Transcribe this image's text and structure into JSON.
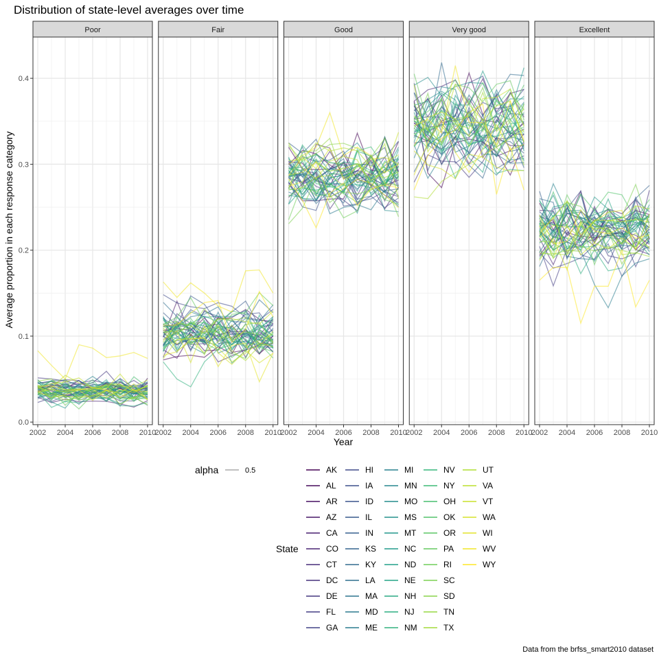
{
  "chart_data": {
    "type": "line",
    "title": "Distribution of state-level averages over time",
    "xlabel": "Year",
    "ylabel": "Average proportion in each response category",
    "caption": "Data from the brfss_smart2010 dataset",
    "facets": [
      "Poor",
      "Fair",
      "Good",
      "Very good",
      "Excellent"
    ],
    "x": [
      2002,
      2003,
      2004,
      2005,
      2006,
      2007,
      2008,
      2009,
      2010
    ],
    "x_ticks": [
      2002,
      2004,
      2006,
      2008,
      2010
    ],
    "xlim": [
      2002,
      2010
    ],
    "y_ticks": [
      0.0,
      0.1,
      0.2,
      0.3,
      0.4
    ],
    "y_tick_labels": [
      "0.0",
      "0.1",
      "0.2",
      "0.3",
      "0.4"
    ],
    "ylim": [
      -0.003,
      0.448
    ],
    "grid": true,
    "line_alpha": 0.5,
    "facet_summary": {
      "Poor": {
        "center": 0.036,
        "spread": 0.008
      },
      "Fair": {
        "center": 0.103,
        "spread": 0.017
      },
      "Good": {
        "center": 0.287,
        "spread": 0.022
      },
      "Very good": {
        "center": 0.348,
        "spread": 0.028
      },
      "Excellent": {
        "center": 0.223,
        "spread": 0.024
      }
    },
    "highlighted_series": [
      {
        "facet": "Poor",
        "state": "WV",
        "values": [
          0.083,
          0.066,
          0.05,
          0.09,
          0.086,
          0.075,
          0.077,
          0.081,
          0.074
        ]
      },
      {
        "facet": "Fair",
        "state": "WV",
        "values": [
          0.163,
          0.145,
          0.162,
          0.15,
          0.135,
          0.128,
          0.176,
          0.177,
          0.15
        ]
      },
      {
        "facet": "Fair",
        "state": "NM",
        "values": [
          0.07,
          0.05,
          0.041,
          0.07,
          0.085,
          0.09,
          0.1,
          0.11,
          0.12
        ]
      },
      {
        "facet": "Good",
        "state": "WV",
        "values": [
          0.3,
          0.31,
          0.32,
          0.36,
          0.31,
          0.32,
          0.31,
          0.29,
          0.3
        ]
      },
      {
        "facet": "Very good",
        "state": "WY",
        "values": [
          0.27,
          0.31,
          0.33,
          0.34,
          0.36,
          0.37,
          0.265,
          0.32,
          0.27
        ]
      },
      {
        "facet": "Very good",
        "state": "UT",
        "values": [
          0.262,
          0.26,
          0.28,
          0.29,
          0.3,
          0.31,
          0.32,
          0.33,
          0.34
        ]
      },
      {
        "facet": "Excellent",
        "state": "WY",
        "values": [
          0.165,
          0.18,
          0.18,
          0.115,
          0.158,
          0.158,
          0.2,
          0.134,
          0.165
        ]
      },
      {
        "facet": "Excellent",
        "state": "ME",
        "values": [
          0.22,
          0.2,
          0.21,
          0.2,
          0.16,
          0.133,
          0.17,
          0.185,
          0.19
        ]
      }
    ],
    "legend": {
      "alpha_title": "alpha",
      "alpha_value": "0.5",
      "state_title": "State",
      "states": [
        "AK",
        "AL",
        "AR",
        "AZ",
        "CA",
        "CO",
        "CT",
        "DC",
        "DE",
        "FL",
        "GA",
        "HI",
        "IA",
        "ID",
        "IL",
        "IN",
        "KS",
        "KY",
        "LA",
        "MA",
        "MD",
        "ME",
        "MI",
        "MN",
        "MO",
        "MS",
        "MT",
        "NC",
        "ND",
        "NE",
        "NH",
        "NJ",
        "NM",
        "NV",
        "NY",
        "OH",
        "OK",
        "OR",
        "PA",
        "RI",
        "SC",
        "SD",
        "TN",
        "TX",
        "UT",
        "VA",
        "VT",
        "WA",
        "WI",
        "WV",
        "WY"
      ],
      "placement": "bottom"
    },
    "palette": "viridis",
    "colors": {
      "panel_border": "#333333",
      "grid": "#ebebeb",
      "strip_fill": "#d9d9d9",
      "alpha_key": "#999999"
    }
  }
}
